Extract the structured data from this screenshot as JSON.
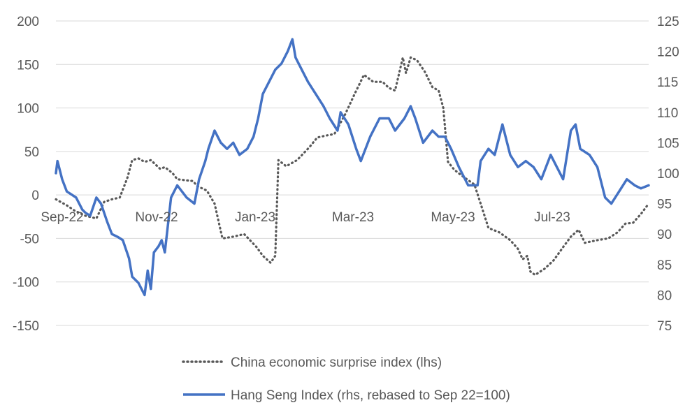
{
  "chart_data": {
    "type": "line",
    "title": "",
    "x_tick_labels": [
      "Sep-22",
      "Nov-22",
      "Jan-23",
      "Mar-23",
      "May-23",
      "Jul-23"
    ],
    "y_left": {
      "range": [
        -150,
        200
      ],
      "ticks": [
        -150,
        -100,
        -50,
        0,
        50,
        100,
        150,
        200
      ]
    },
    "y_right": {
      "range": [
        75,
        125
      ],
      "ticks": [
        75,
        80,
        85,
        90,
        95,
        100,
        105,
        110,
        115,
        120,
        125
      ]
    },
    "grid": "horizontal",
    "legend_position": "bottom",
    "series": [
      {
        "name": "China economic surprise index (lhs)",
        "axis": "left",
        "style": "dotted",
        "color": "#595959",
        "points": [
          [
            "2022-09-01",
            -5
          ],
          [
            "2022-09-08",
            -12
          ],
          [
            "2022-09-13",
            -18
          ],
          [
            "2022-09-20",
            -24
          ],
          [
            "2022-09-27",
            -27
          ],
          [
            "2022-10-02",
            -8
          ],
          [
            "2022-10-07",
            -5
          ],
          [
            "2022-10-12",
            -3
          ],
          [
            "2022-10-17",
            20
          ],
          [
            "2022-10-20",
            40
          ],
          [
            "2022-10-24",
            42
          ],
          [
            "2022-10-28",
            38
          ],
          [
            "2022-11-01",
            40
          ],
          [
            "2022-11-07",
            30
          ],
          [
            "2022-11-10",
            32
          ],
          [
            "2022-11-15",
            25
          ],
          [
            "2022-11-18",
            18
          ],
          [
            "2022-11-23",
            17
          ],
          [
            "2022-11-28",
            16
          ],
          [
            "2022-12-01",
            10
          ],
          [
            "2022-12-07",
            5
          ],
          [
            "2022-12-12",
            -10
          ],
          [
            "2022-12-17",
            -50
          ],
          [
            "2022-12-24",
            -48
          ],
          [
            "2022-12-31",
            -45
          ],
          [
            "2023-01-08",
            -60
          ],
          [
            "2023-01-12",
            -70
          ],
          [
            "2023-01-17",
            -78
          ],
          [
            "2023-01-20",
            -70
          ],
          [
            "2023-01-22",
            40
          ],
          [
            "2023-01-27",
            33
          ],
          [
            "2023-02-03",
            40
          ],
          [
            "2023-02-11",
            55
          ],
          [
            "2023-02-16",
            66
          ],
          [
            "2023-02-21",
            68
          ],
          [
            "2023-02-27",
            70
          ],
          [
            "2023-03-06",
            93
          ],
          [
            "2023-03-12",
            116
          ],
          [
            "2023-03-18",
            138
          ],
          [
            "2023-03-24",
            130
          ],
          [
            "2023-03-30",
            130
          ],
          [
            "2023-04-03",
            123
          ],
          [
            "2023-04-07",
            120
          ],
          [
            "2023-04-12",
            158
          ],
          [
            "2023-04-14",
            140
          ],
          [
            "2023-04-17",
            158
          ],
          [
            "2023-04-21",
            155
          ],
          [
            "2023-04-26",
            142
          ],
          [
            "2023-05-01",
            124
          ],
          [
            "2023-05-05",
            120
          ],
          [
            "2023-05-08",
            100
          ],
          [
            "2023-05-11",
            38
          ],
          [
            "2023-05-15",
            29
          ],
          [
            "2023-05-20",
            22
          ],
          [
            "2023-05-28",
            12
          ],
          [
            "2023-06-01",
            -10
          ],
          [
            "2023-06-06",
            -38
          ],
          [
            "2023-06-13",
            -43
          ],
          [
            "2023-06-20",
            -52
          ],
          [
            "2023-06-25",
            -62
          ],
          [
            "2023-06-28",
            -74
          ],
          [
            "2023-07-01",
            -70
          ],
          [
            "2023-07-03",
            -88
          ],
          [
            "2023-07-06",
            -92
          ],
          [
            "2023-07-12",
            -85
          ],
          [
            "2023-07-18",
            -75
          ],
          [
            "2023-07-24",
            -60
          ],
          [
            "2023-07-29",
            -48
          ],
          [
            "2023-08-03",
            -40
          ],
          [
            "2023-08-07",
            -55
          ],
          [
            "2023-08-15",
            -52
          ],
          [
            "2023-08-22",
            -50
          ],
          [
            "2023-08-28",
            -43
          ],
          [
            "2023-09-02",
            -33
          ],
          [
            "2023-09-07",
            -32
          ],
          [
            "2023-09-12",
            -22
          ],
          [
            "2023-09-17",
            -10
          ]
        ]
      },
      {
        "name": "Hang Seng Index (rhs, rebased to Sep 22=100)",
        "axis": "right",
        "style": "solid",
        "color": "#4472c4",
        "points": [
          [
            "2022-09-01",
            100
          ],
          [
            "2022-09-02",
            102
          ],
          [
            "2022-09-05",
            99
          ],
          [
            "2022-09-08",
            97
          ],
          [
            "2022-09-14",
            96
          ],
          [
            "2022-09-18",
            94
          ],
          [
            "2022-09-20",
            93.5
          ],
          [
            "2022-09-23",
            93
          ],
          [
            "2022-09-27",
            96
          ],
          [
            "2022-09-30",
            95
          ],
          [
            "2022-10-04",
            92
          ],
          [
            "2022-10-07",
            90
          ],
          [
            "2022-10-11",
            89.5
          ],
          [
            "2022-10-14",
            89
          ],
          [
            "2022-10-18",
            86
          ],
          [
            "2022-10-20",
            83
          ],
          [
            "2022-10-24",
            82
          ],
          [
            "2022-10-26",
            81
          ],
          [
            "2022-10-28",
            80
          ],
          [
            "2022-10-30",
            84
          ],
          [
            "2022-11-01",
            81
          ],
          [
            "2022-11-03",
            87
          ],
          [
            "2022-11-06",
            88
          ],
          [
            "2022-11-08",
            89
          ],
          [
            "2022-11-10",
            87
          ],
          [
            "2022-11-14",
            96
          ],
          [
            "2022-11-18",
            98
          ],
          [
            "2022-11-24",
            96
          ],
          [
            "2022-11-29",
            95
          ],
          [
            "2022-12-02",
            99
          ],
          [
            "2022-12-06",
            102
          ],
          [
            "2022-12-08",
            104
          ],
          [
            "2022-12-12",
            107
          ],
          [
            "2022-12-16",
            105
          ],
          [
            "2022-12-20",
            104
          ],
          [
            "2022-12-24",
            105
          ],
          [
            "2022-12-28",
            103
          ],
          [
            "2023-01-02",
            104
          ],
          [
            "2023-01-06",
            106
          ],
          [
            "2023-01-09",
            109
          ],
          [
            "2023-01-12",
            113
          ],
          [
            "2023-01-16",
            115
          ],
          [
            "2023-01-20",
            117
          ],
          [
            "2023-01-24",
            118
          ],
          [
            "2023-01-28",
            120
          ],
          [
            "2023-01-31",
            122
          ],
          [
            "2023-02-02",
            119
          ],
          [
            "2023-02-06",
            117
          ],
          [
            "2023-02-10",
            115
          ],
          [
            "2023-02-15",
            113
          ],
          [
            "2023-02-20",
            111
          ],
          [
            "2023-02-24",
            109
          ],
          [
            "2023-03-01",
            107
          ],
          [
            "2023-03-03",
            110
          ],
          [
            "2023-03-08",
            108
          ],
          [
            "2023-03-13",
            104
          ],
          [
            "2023-03-16",
            102
          ],
          [
            "2023-03-22",
            106
          ],
          [
            "2023-03-28",
            109
          ],
          [
            "2023-04-03",
            109
          ],
          [
            "2023-04-07",
            107
          ],
          [
            "2023-04-13",
            109
          ],
          [
            "2023-04-17",
            111
          ],
          [
            "2023-04-20",
            109
          ],
          [
            "2023-04-25",
            105
          ],
          [
            "2023-05-01",
            107
          ],
          [
            "2023-05-05",
            106
          ],
          [
            "2023-05-09",
            106
          ],
          [
            "2023-05-13",
            104
          ],
          [
            "2023-05-18",
            101
          ],
          [
            "2023-05-24",
            98
          ],
          [
            "2023-05-30",
            98
          ],
          [
            "2023-06-01",
            102
          ],
          [
            "2023-06-06",
            104
          ],
          [
            "2023-06-10",
            103
          ],
          [
            "2023-06-15",
            108
          ],
          [
            "2023-06-20",
            103
          ],
          [
            "2023-06-25",
            101
          ],
          [
            "2023-06-30",
            102
          ],
          [
            "2023-07-05",
            101
          ],
          [
            "2023-07-10",
            99
          ],
          [
            "2023-07-16",
            103
          ],
          [
            "2023-07-20",
            101
          ],
          [
            "2023-07-24",
            99
          ],
          [
            "2023-07-29",
            107
          ],
          [
            "2023-08-01",
            108
          ],
          [
            "2023-08-04",
            104
          ],
          [
            "2023-08-10",
            103
          ],
          [
            "2023-08-15",
            101
          ],
          [
            "2023-08-20",
            96
          ],
          [
            "2023-08-24",
            95
          ],
          [
            "2023-08-29",
            97
          ],
          [
            "2023-09-03",
            99
          ],
          [
            "2023-09-08",
            98
          ],
          [
            "2023-09-12",
            97.5
          ],
          [
            "2023-09-17",
            98
          ]
        ]
      }
    ]
  }
}
